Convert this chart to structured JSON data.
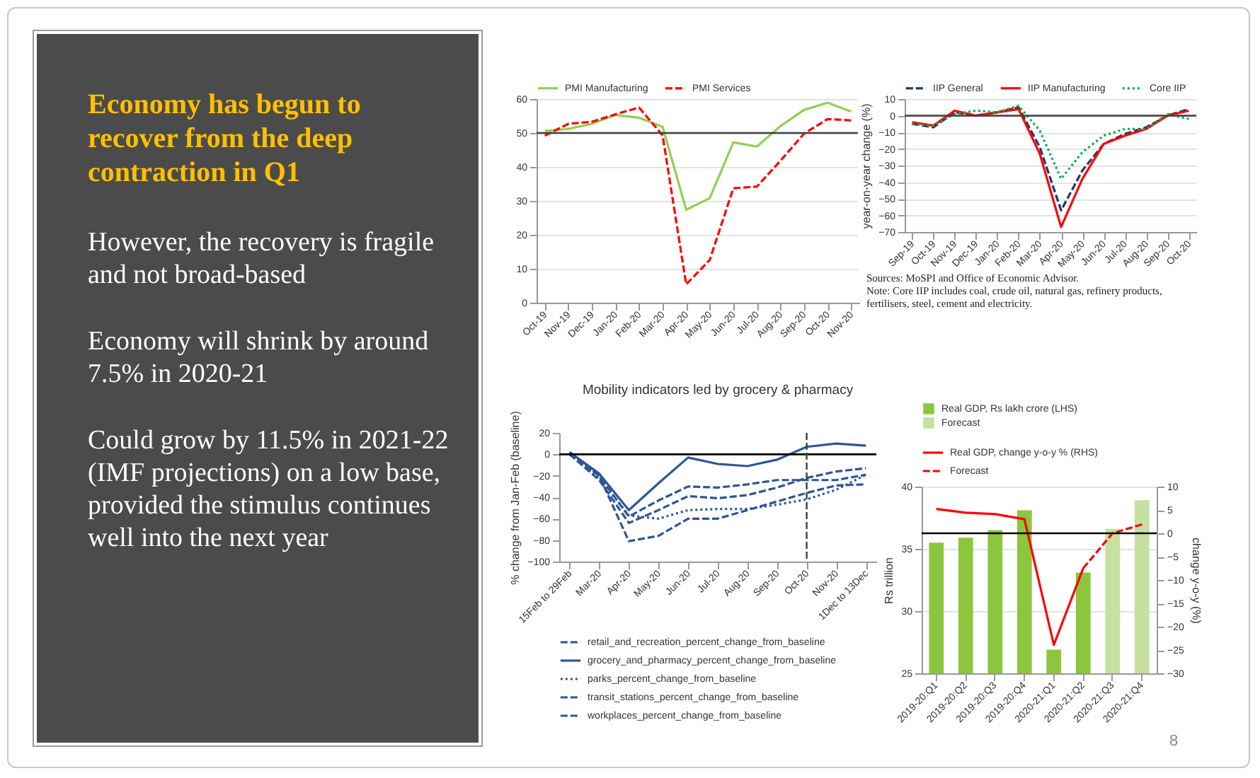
{
  "chart_data": [
    {
      "type": "other",
      "title": "Economy has begun to recover from the deep contraction in Q1",
      "annotations": [
        "However, the recovery is fragile and not broad-based",
        "Economy will shrink by around 7.5% in 2020-21",
        "Could grow by 11.5% in 2021-22 (IMF projections) on a low base, provided the stimulus continues well into the next year"
      ]
    },
    {
      "type": "line",
      "categories": [
        "Oct-19",
        "Nov-19",
        "Dec-19",
        "Jan-20",
        "Feb-20",
        "Mar-20",
        "Apr-20",
        "May-20",
        "Jun-20",
        "Jul-20",
        "Aug-20",
        "Sep-20",
        "Oct-20",
        "Nov-20"
      ],
      "series": [
        {
          "name": "PMI Manufacturing",
          "color": "#92d050",
          "line_style": "solid",
          "values": [
            50.6,
            51.2,
            52.7,
            55.3,
            54.5,
            51.8,
            27.4,
            30.8,
            47.2,
            46.0,
            52.0,
            56.8,
            58.9,
            56.3
          ]
        },
        {
          "name": "PMI Services",
          "color": "#ff0000",
          "line_style": "dashed",
          "values": [
            49.2,
            52.7,
            53.3,
            55.5,
            57.5,
            49.3,
            5.4,
            12.6,
            33.7,
            34.2,
            41.8,
            49.8,
            54.1,
            53.7
          ]
        }
      ],
      "ylim": [
        0,
        60
      ],
      "yticks": [
        0,
        10,
        20,
        30,
        40,
        50,
        60
      ],
      "grid": "y",
      "legend": "top",
      "ref_lines": [
        {
          "axis": "y",
          "value": 50,
          "color": "#404040"
        }
      ]
    },
    {
      "type": "line",
      "ylabel": "year-on-year change (%)",
      "categories": [
        "Sep-19",
        "Oct-19",
        "Nov-19",
        "Dec-19",
        "Jan-20",
        "Feb-20",
        "Mar-20",
        "Apr-20",
        "May-20",
        "Jun-20",
        "Jul-20",
        "Aug-20",
        "Sep-20",
        "Oct-20"
      ],
      "series": [
        {
          "name": "IIP General",
          "color": "#1f3864",
          "line_style": "dashed",
          "values": [
            -5,
            -7,
            2,
            0,
            2,
            5,
            -19,
            -57,
            -33,
            -17,
            -11,
            -7,
            0,
            4
          ]
        },
        {
          "name": "IIP Manufacturing",
          "color": "#ff0000",
          "line_style": "solid",
          "values": [
            -4,
            -6,
            3,
            0,
            2,
            4,
            -23,
            -67,
            -38,
            -17,
            -12,
            -8,
            0,
            3
          ]
        },
        {
          "name": "Core IIP",
          "color": "#00b050",
          "line_style": "dotted",
          "values": [
            -5,
            -6,
            1,
            3,
            2,
            6,
            -9,
            -38,
            -22,
            -12,
            -8,
            -8,
            1,
            -2
          ]
        }
      ],
      "ylim": [
        -70,
        10
      ],
      "yticks": [
        -70,
        -60,
        -50,
        -40,
        -30,
        -20,
        -10,
        0,
        10
      ],
      "grid": "y",
      "legend": "top",
      "ref_lines": [
        {
          "axis": "y",
          "value": 0,
          "color": "#404040"
        }
      ],
      "annotations": [
        "Sources: MoSPI and Office of Economic Advisor.",
        "Note: Core IIP includes coal, crude oil, natural gas, refinery products, fertilisers, steel, cement and electricity."
      ]
    },
    {
      "type": "line",
      "title": "Mobility indicators led by grocery & pharmacy",
      "ylabel": "% change from Jan-Feb (baseline)",
      "categories": [
        "15Feb to 29Feb",
        "Mar-20",
        "Apr-20",
        "May-20",
        "Jun-20",
        "Jul-20",
        "Aug-20",
        "Sep-20",
        "Oct-20",
        "Nov-20",
        "1Dec to 13Dec"
      ],
      "series": [
        {
          "name": "retail_and_recreation_percent_change_from_baseline",
          "color": "#2f5597",
          "line_style": "dashed",
          "values": [
            2,
            -20,
            -81,
            -76,
            -60,
            -60,
            -52,
            -44,
            -36,
            -29,
            -28
          ]
        },
        {
          "name": "grocery_and_pharmacy_percent_change_from_baseline",
          "color": "#2f5597",
          "line_style": "solid",
          "values": [
            2,
            -18,
            -52,
            -27,
            -3,
            -9,
            -11,
            -5,
            7,
            10,
            8
          ]
        },
        {
          "name": "parks_percent_change_from_baseline",
          "color": "#2f5597",
          "line_style": "dotted",
          "values": [
            0,
            -22,
            -57,
            -60,
            -52,
            -51,
            -51,
            -47,
            -42,
            -33,
            -19
          ]
        },
        {
          "name": "transit_stations_percent_change_from_baseline",
          "color": "#2f5597",
          "line_style": "dashed",
          "values": [
            0,
            -24,
            -64,
            -52,
            -39,
            -41,
            -38,
            -31,
            -22,
            -16,
            -13
          ]
        },
        {
          "name": "workplaces_percent_change_from_baseline",
          "color": "#2f5597",
          "line_style": "dashed",
          "values": [
            0,
            -20,
            -58,
            -43,
            -30,
            -31,
            -28,
            -24,
            -24,
            -24,
            -19
          ]
        }
      ],
      "ylim": [
        -100,
        20
      ],
      "yticks": [
        -100,
        -80,
        -60,
        -40,
        -20,
        0,
        20
      ],
      "legend": "bottom",
      "ref_lines": [
        {
          "axis": "y",
          "value": 0,
          "color": "#000000"
        },
        {
          "axis": "x",
          "value": "Oct-20",
          "color": "#404040",
          "line_style": "dashed"
        }
      ]
    },
    {
      "type": "bar",
      "ylabel": "Rs trillion",
      "y2label": "change y-o-y (%)",
      "categories": [
        "2019-20:Q1",
        "2019-20:Q2",
        "2019-20:Q3",
        "2019-20:Q4",
        "2020-21:Q1",
        "2020-21:Q2",
        "2020-21:Q3",
        "2020-21:Q4"
      ],
      "series": [
        {
          "name": "Real GDP, Rs lakh crore (LHS)",
          "color": "#8cc63f",
          "values": [
            35.5,
            35.9,
            36.5,
            38.1,
            26.9,
            33.1,
            null,
            null
          ]
        },
        {
          "name": "Forecast",
          "color": "#c5e0a0",
          "values": [
            null,
            null,
            null,
            null,
            null,
            null,
            36.6,
            38.9
          ]
        },
        {
          "name": "Real GDP, change y-o-y % (RHS)",
          "type": "line",
          "axis": "y2",
          "color": "#ff0000",
          "line_style": "solid",
          "values": [
            5.2,
            4.4,
            4.1,
            3.0,
            -23.9,
            -7.5,
            null,
            null
          ]
        },
        {
          "name": "Forecast",
          "type": "line",
          "axis": "y2",
          "color": "#ff0000",
          "line_style": "dashed",
          "values": [
            null,
            null,
            null,
            null,
            null,
            -7.5,
            0,
            1.9
          ]
        }
      ],
      "ylim": [
        25,
        40
      ],
      "yticks": [
        25,
        30,
        35,
        40
      ],
      "y2lim": [
        -30,
        10
      ],
      "y2ticks": [
        -30,
        -25,
        -20,
        -15,
        -10,
        -5,
        0,
        5,
        10
      ],
      "grid": "y",
      "legend": "top",
      "ref_lines": [
        {
          "axis": "y2",
          "value": 0,
          "color": "#000000"
        }
      ]
    },
    {
      "type": "other",
      "annotations": [
        "8"
      ]
    }
  ]
}
